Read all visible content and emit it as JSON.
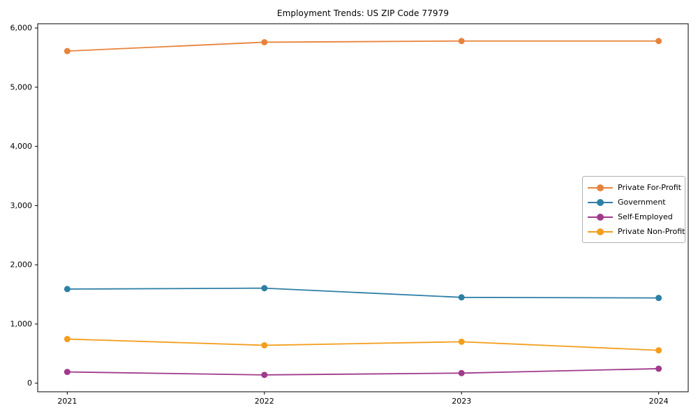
{
  "chart_data": {
    "type": "line",
    "title": "Employment Trends: US ZIP Code 77979",
    "xlabel": "",
    "ylabel": "",
    "x": [
      2021,
      2022,
      2023,
      2024
    ],
    "x_tick_labels": [
      "2021",
      "2022",
      "2023",
      "2024"
    ],
    "y_ticks": [
      {
        "value": 0,
        "label": "0"
      },
      {
        "value": 1000,
        "label": "1,000"
      },
      {
        "value": 2000,
        "label": "2,000"
      },
      {
        "value": 3000,
        "label": "3,000"
      },
      {
        "value": 4000,
        "label": "4,000"
      },
      {
        "value": 5000,
        "label": "5,000"
      },
      {
        "value": 6000,
        "label": "6,000"
      }
    ],
    "xlim": [
      2020.85,
      2024.15
    ],
    "ylim": [
      -145,
      6072
    ],
    "grid": false,
    "legend_position": "center-right",
    "axis_color": "#000000",
    "series": [
      {
        "name": "Private For-Profit",
        "color": "#e8833c",
        "values": [
          5610,
          5760,
          5780,
          5780
        ]
      },
      {
        "name": "Government",
        "color": "#2e7fa6",
        "values": [
          1590,
          1605,
          1450,
          1440
        ]
      },
      {
        "name": "Self-Employed",
        "color": "#a13a8b",
        "values": [
          190,
          140,
          170,
          245
        ]
      },
      {
        "name": "Private Non-Profit",
        "color": "#f39e1d",
        "values": [
          745,
          640,
          700,
          555
        ]
      }
    ]
  }
}
